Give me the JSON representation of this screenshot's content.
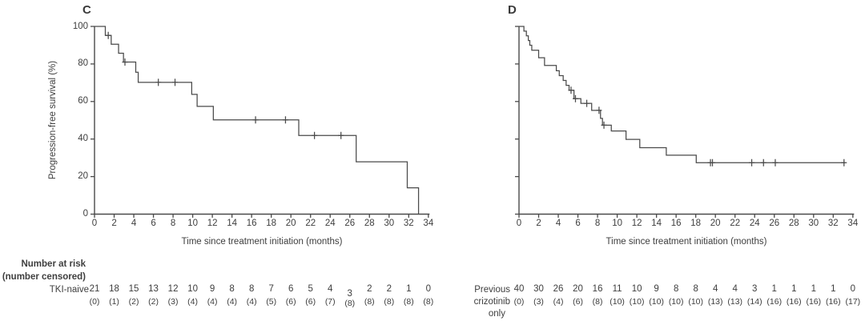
{
  "figure": {
    "risk_header_line1": "Number at risk",
    "risk_header_line2": "(number censored)",
    "colors": {
      "text": "#3e3e3e",
      "curve": "#4a4a4a",
      "axis": "#4a4a4a"
    }
  },
  "chart_data": [
    {
      "type": "line",
      "subtype": "kaplan-meier-step",
      "panel_label": "C",
      "group": "TKI-naive",
      "xlabel": "Time since treatment initiation (months)",
      "ylabel": "Progression-free survival (%)",
      "xlim": [
        0,
        34
      ],
      "ylim": [
        0,
        100
      ],
      "x_ticks": [
        0,
        2,
        4,
        6,
        8,
        10,
        12,
        14,
        16,
        18,
        20,
        22,
        24,
        26,
        28,
        30,
        32,
        34
      ],
      "y_ticks": [
        100,
        80,
        60,
        40,
        20,
        0
      ],
      "y_tick_labels_visible": true,
      "grid": false,
      "steps_month_percent": [
        [
          0,
          100
        ],
        [
          1.1,
          95.2
        ],
        [
          1.7,
          90.5
        ],
        [
          2.45,
          85.7
        ],
        [
          2.95,
          81.0
        ],
        [
          4.2,
          75.6
        ],
        [
          4.45,
          70.2
        ],
        [
          9.9,
          63.8
        ],
        [
          10.45,
          57.4
        ],
        [
          12.1,
          50.2
        ],
        [
          20.8,
          41.9
        ],
        [
          26.65,
          27.9
        ],
        [
          31.85,
          14.0
        ],
        [
          33.0,
          0.0
        ]
      ],
      "curve_end_month": 33.0,
      "censor_marks_month_percent": [
        [
          1.4,
          95.2
        ],
        [
          3.1,
          81.0
        ],
        [
          6.5,
          70.2
        ],
        [
          8.2,
          70.2
        ],
        [
          16.4,
          50.2
        ],
        [
          19.45,
          50.2
        ],
        [
          22.4,
          41.9
        ],
        [
          25.1,
          41.9
        ]
      ],
      "risk_label_lines": [
        "TKI-naive"
      ],
      "number_at_risk": [
        21,
        18,
        15,
        13,
        12,
        10,
        9,
        8,
        8,
        7,
        6,
        5,
        4,
        3,
        2,
        2,
        1,
        0
      ],
      "number_censored": [
        "(0)",
        "(1)",
        "(2)",
        "(2)",
        "(3)",
        "(4)",
        "(4)",
        "(4)",
        "(4)",
        "(5)",
        "(6)",
        "(6)",
        "(7)",
        "(8)",
        "(8)",
        "(8)",
        "(8)",
        "(8)"
      ]
    },
    {
      "type": "line",
      "subtype": "kaplan-meier-step",
      "panel_label": "D",
      "group": "Previous crizotinib only",
      "xlabel": "Time since treatment initiation (months)",
      "ylabel": "",
      "xlim": [
        0,
        34
      ],
      "ylim": [
        0,
        100
      ],
      "x_ticks": [
        0,
        2,
        4,
        6,
        8,
        10,
        12,
        14,
        16,
        18,
        20,
        22,
        24,
        26,
        28,
        30,
        32,
        34
      ],
      "y_ticks": [
        100,
        80,
        60,
        40,
        20,
        0
      ],
      "y_tick_labels_visible": false,
      "grid": false,
      "steps_month_percent": [
        [
          0,
          100
        ],
        [
          0.5,
          97.5
        ],
        [
          0.75,
          95.0
        ],
        [
          0.95,
          92.5
        ],
        [
          1.1,
          90.0
        ],
        [
          1.3,
          87.3
        ],
        [
          2.0,
          83.3
        ],
        [
          2.6,
          79.2
        ],
        [
          3.8,
          76.4
        ],
        [
          4.1,
          73.8
        ],
        [
          4.5,
          71.2
        ],
        [
          4.8,
          68.6
        ],
        [
          5.1,
          66.0
        ],
        [
          5.6,
          61.5
        ],
        [
          6.3,
          59.0
        ],
        [
          7.4,
          55.3
        ],
        [
          8.3,
          51.0
        ],
        [
          8.5,
          47.4
        ],
        [
          9.4,
          44.3
        ],
        [
          10.9,
          39.8
        ],
        [
          12.3,
          35.4
        ],
        [
          15.0,
          31.4
        ],
        [
          18.05,
          27.4
        ]
      ],
      "curve_end_month": 33.2,
      "censor_marks_month_percent": [
        [
          5.3,
          66.0
        ],
        [
          5.75,
          61.5
        ],
        [
          6.9,
          59.0
        ],
        [
          8.15,
          55.3
        ],
        [
          8.65,
          47.4
        ],
        [
          19.5,
          27.4
        ],
        [
          19.7,
          27.4
        ],
        [
          23.7,
          27.4
        ],
        [
          24.9,
          27.4
        ],
        [
          26.1,
          27.4
        ],
        [
          33.1,
          27.4
        ]
      ],
      "risk_label_lines": [
        "Previous",
        "crizotinib",
        "only"
      ],
      "number_at_risk": [
        40,
        30,
        26,
        20,
        16,
        11,
        10,
        9,
        8,
        8,
        4,
        4,
        3,
        1,
        1,
        1,
        1,
        0
      ],
      "number_censored": [
        "(0)",
        "(3)",
        "(4)",
        "(6)",
        "(8)",
        "(10)",
        "(10)",
        "(10)",
        "(10)",
        "(10)",
        "(13)",
        "(13)",
        "(14)",
        "(16)",
        "(16)",
        "(16)",
        "(16)",
        "(17)"
      ]
    }
  ]
}
